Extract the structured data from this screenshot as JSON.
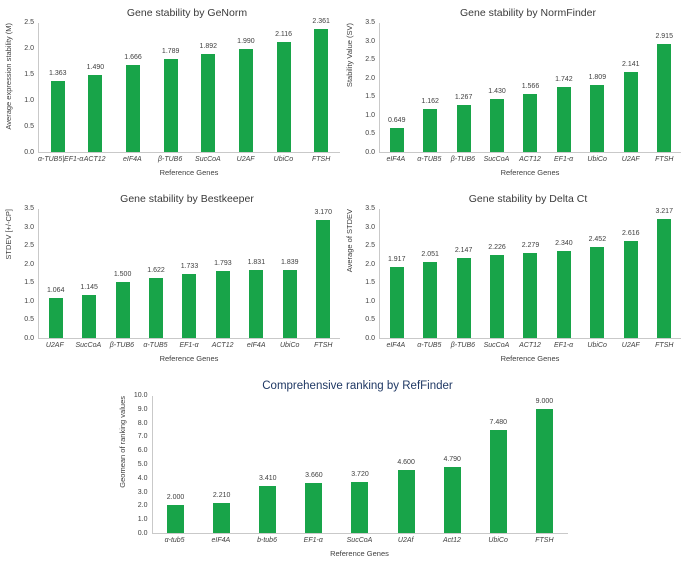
{
  "figure": {
    "bar_color": "#18a449",
    "title_color": "#3a3a3a",
    "reffinder_title_color": "#1f3864",
    "axis_line_color": "#c9c9c9",
    "text_color": "#404040"
  },
  "chart_data": [
    {
      "id": "genorm",
      "type": "bar",
      "title": "Gene stability by GeNorm",
      "xlabel": "Reference Genes",
      "ylabel": "Average expression stability (M)",
      "ylim": [
        0,
        2.5
      ],
      "y_ticks": [
        "0.0",
        "0.5",
        "1.0",
        "1.5",
        "2.0",
        "2.5"
      ],
      "grid": false,
      "legend": null,
      "categories": [
        "α-TUB5|EF1-α",
        "ACT12",
        "eIF4A",
        "β-TUB6",
        "SucCoA",
        "U2AF",
        "UbiCo",
        "FTSH"
      ],
      "values": [
        1.363,
        1.49,
        1.666,
        1.789,
        1.892,
        1.99,
        2.116,
        2.361
      ],
      "value_labels": [
        "1.363",
        "1.490",
        "1.666",
        "1.789",
        "1.892",
        "1.990",
        "2.116",
        "2.361"
      ]
    },
    {
      "id": "normfinder",
      "type": "bar",
      "title": "Gene stability by NormFinder",
      "xlabel": "Reference Genes",
      "ylabel": "Stability Value (SV)",
      "ylim": [
        0,
        3.5
      ],
      "y_ticks": [
        "0.0",
        "0.5",
        "1.0",
        "1.5",
        "2.0",
        "2.5",
        "3.0",
        "3.5"
      ],
      "grid": false,
      "legend": null,
      "categories": [
        "eIF4A",
        "α-TUB5",
        "β-TUB6",
        "SucCoA",
        "ACT12",
        "EF1-α",
        "UbiCo",
        "U2AF",
        "FTSH"
      ],
      "values": [
        0.649,
        1.162,
        1.267,
        1.43,
        1.566,
        1.742,
        1.809,
        2.141,
        2.915
      ],
      "value_labels": [
        "0.649",
        "1.162",
        "1.267",
        "1.430",
        "1.566",
        "1.742",
        "1.809",
        "2.141",
        "2.915"
      ]
    },
    {
      "id": "bestkeeper",
      "type": "bar",
      "title": "Gene stability by Bestkeeper",
      "xlabel": "Reference Genes",
      "ylabel": "STDEV [+/-CP]",
      "ylim": [
        0,
        3.5
      ],
      "y_ticks": [
        "0.0",
        "0.5",
        "1.0",
        "1.5",
        "2.0",
        "2.5",
        "3.0",
        "3.5"
      ],
      "grid": false,
      "legend": null,
      "categories": [
        "U2AF",
        "SucCoA",
        "β-TUB6",
        "α-TUB5",
        "EF1-α",
        "ACT12",
        "eIF4A",
        "UbiCo",
        "FTSH"
      ],
      "values": [
        1.064,
        1.145,
        1.5,
        1.622,
        1.733,
        1.793,
        1.831,
        1.839,
        3.17
      ],
      "value_labels": [
        "1.064",
        "1.145",
        "1.500",
        "1.622",
        "1.733",
        "1.793",
        "1.831",
        "1.839",
        "3.170"
      ]
    },
    {
      "id": "deltact",
      "type": "bar",
      "title": "Gene stability by Delta Ct",
      "xlabel": "Reference Genes",
      "ylabel": "Average of STDEV",
      "ylim": [
        0,
        3.5
      ],
      "y_ticks": [
        "0.0",
        "0.5",
        "1.0",
        "1.5",
        "2.0",
        "2.5",
        "3.0",
        "3.5"
      ],
      "grid": false,
      "legend": null,
      "categories": [
        "eIF4A",
        "α-TUB5",
        "β-TUB6",
        "SucCoA",
        "ACT12",
        "EF1-α",
        "UbiCo",
        "U2AF",
        "FTSH"
      ],
      "values": [
        1.917,
        2.051,
        2.147,
        2.226,
        2.279,
        2.34,
        2.452,
        2.616,
        3.217
      ],
      "value_labels": [
        "1.917",
        "2.051",
        "2.147",
        "2.226",
        "2.279",
        "2.340",
        "2.452",
        "2.616",
        "3.217"
      ]
    },
    {
      "id": "reffinder",
      "type": "bar",
      "title": "Comprehensive ranking by RefFinder",
      "xlabel": "Reference Genes",
      "ylabel": "Geomean of ranking values",
      "ylim": [
        0,
        10
      ],
      "y_ticks": [
        "0.0",
        "1.0",
        "2.0",
        "3.0",
        "4.0",
        "5.0",
        "6.0",
        "7.0",
        "8.0",
        "9.0",
        "10.0"
      ],
      "grid": false,
      "legend": null,
      "categories": [
        "α-tub5",
        "eIF4A",
        "b-tub6",
        "EF1-α",
        "SucCoA",
        "U2Af",
        "Act12",
        "UbiCo",
        "FTSH"
      ],
      "values": [
        2.0,
        2.21,
        3.41,
        3.66,
        3.72,
        4.6,
        4.79,
        7.48,
        9.0
      ],
      "value_labels": [
        "2.000",
        "2.210",
        "3.410",
        "3.660",
        "3.720",
        "4.600",
        "4.790",
        "7.480",
        "9.000"
      ]
    }
  ]
}
